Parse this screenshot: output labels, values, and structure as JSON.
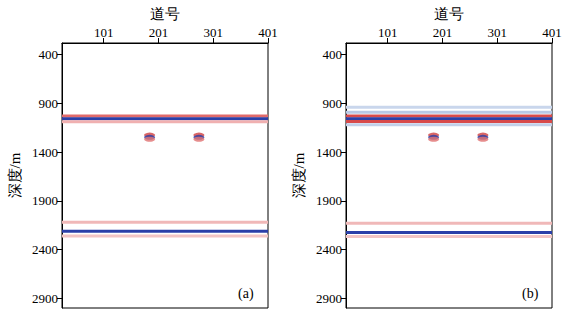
{
  "chart_data": [
    {
      "type": "line",
      "xlabel": "道号",
      "ylabel": "深度/m",
      "annotation": "(a)",
      "xlim": [
        25,
        401
      ],
      "xticks": [
        101,
        201,
        301,
        401
      ],
      "ylim": [
        280,
        3000
      ],
      "yticks": [
        400,
        900,
        1400,
        1900,
        2400,
        2900
      ],
      "series": [
        {
          "type": "line",
          "color": "#e06a6a",
          "x": [
            25,
            401
          ],
          "values": [
            1030,
            1030
          ]
        },
        {
          "type": "line",
          "color": "#2a3fa8",
          "x": [
            25,
            401
          ],
          "values": [
            1058,
            1058
          ]
        },
        {
          "type": "line",
          "color": "#f0b0b0",
          "x": [
            25,
            401
          ],
          "values": [
            1088,
            1088
          ]
        },
        {
          "type": "line",
          "color": "#f0b8b8",
          "x": [
            25,
            401
          ],
          "values": [
            2120,
            2120
          ]
        },
        {
          "type": "line",
          "color": "#2a3fa8",
          "x": [
            25,
            401
          ],
          "values": [
            2212,
            2212
          ]
        },
        {
          "type": "line",
          "color": "#f2c4c4",
          "x": [
            25,
            401
          ],
          "values": [
            2262,
            2262
          ]
        },
        {
          "type": "scatter",
          "marker": "circle",
          "color": "#d04040",
          "x": [
            185,
            275
          ],
          "values": [
            1225,
            1225
          ]
        },
        {
          "type": "scatter",
          "marker": "circle",
          "color": "#2a3fa8",
          "x": [
            185,
            275
          ],
          "values": [
            1248,
            1248
          ]
        },
        {
          "type": "scatter",
          "marker": "circle",
          "color": "#e07070",
          "x": [
            185,
            275
          ],
          "values": [
            1268,
            1268
          ]
        }
      ]
    },
    {
      "type": "line",
      "xlabel": "道号",
      "ylabel": "深度/m",
      "annotation": "(b)",
      "xlim": [
        25,
        401
      ],
      "xticks": [
        101,
        201,
        301,
        401
      ],
      "ylim": [
        280,
        3000
      ],
      "yticks": [
        400,
        900,
        1400,
        1900,
        2400,
        2900
      ],
      "series": [
        {
          "type": "line",
          "color": "#c9d6ec",
          "x": [
            25,
            401
          ],
          "values": [
            940,
            940
          ]
        },
        {
          "type": "line",
          "color": "#b7c8e6",
          "x": [
            25,
            401
          ],
          "values": [
            990,
            990
          ]
        },
        {
          "type": "line",
          "color": "#d84a4a",
          "x": [
            25,
            401
          ],
          "values": [
            1030,
            1030
          ]
        },
        {
          "type": "line",
          "color": "#2a3fa8",
          "x": [
            25,
            401
          ],
          "values": [
            1058,
            1058
          ]
        },
        {
          "type": "line",
          "color": "#d84a4a",
          "x": [
            25,
            401
          ],
          "values": [
            1085,
            1085
          ]
        },
        {
          "type": "line",
          "color": "#c3d1ea",
          "x": [
            25,
            401
          ],
          "values": [
            1120,
            1120
          ]
        },
        {
          "type": "line",
          "color": "#f0b8b8",
          "x": [
            25,
            401
          ],
          "values": [
            2130,
            2130
          ]
        },
        {
          "type": "line",
          "color": "#2a3fa8",
          "x": [
            25,
            401
          ],
          "values": [
            2225,
            2225
          ]
        },
        {
          "type": "line",
          "color": "#f2c4c4",
          "x": [
            25,
            401
          ],
          "values": [
            2265,
            2265
          ]
        },
        {
          "type": "scatter",
          "marker": "circle",
          "color": "#d04040",
          "x": [
            185,
            275
          ],
          "values": [
            1225,
            1225
          ]
        },
        {
          "type": "scatter",
          "marker": "circle",
          "color": "#2a3fa8",
          "x": [
            185,
            275
          ],
          "values": [
            1248,
            1248
          ]
        },
        {
          "type": "scatter",
          "marker": "circle",
          "color": "#e07070",
          "x": [
            185,
            275
          ],
          "values": [
            1268,
            1268
          ]
        }
      ]
    }
  ]
}
